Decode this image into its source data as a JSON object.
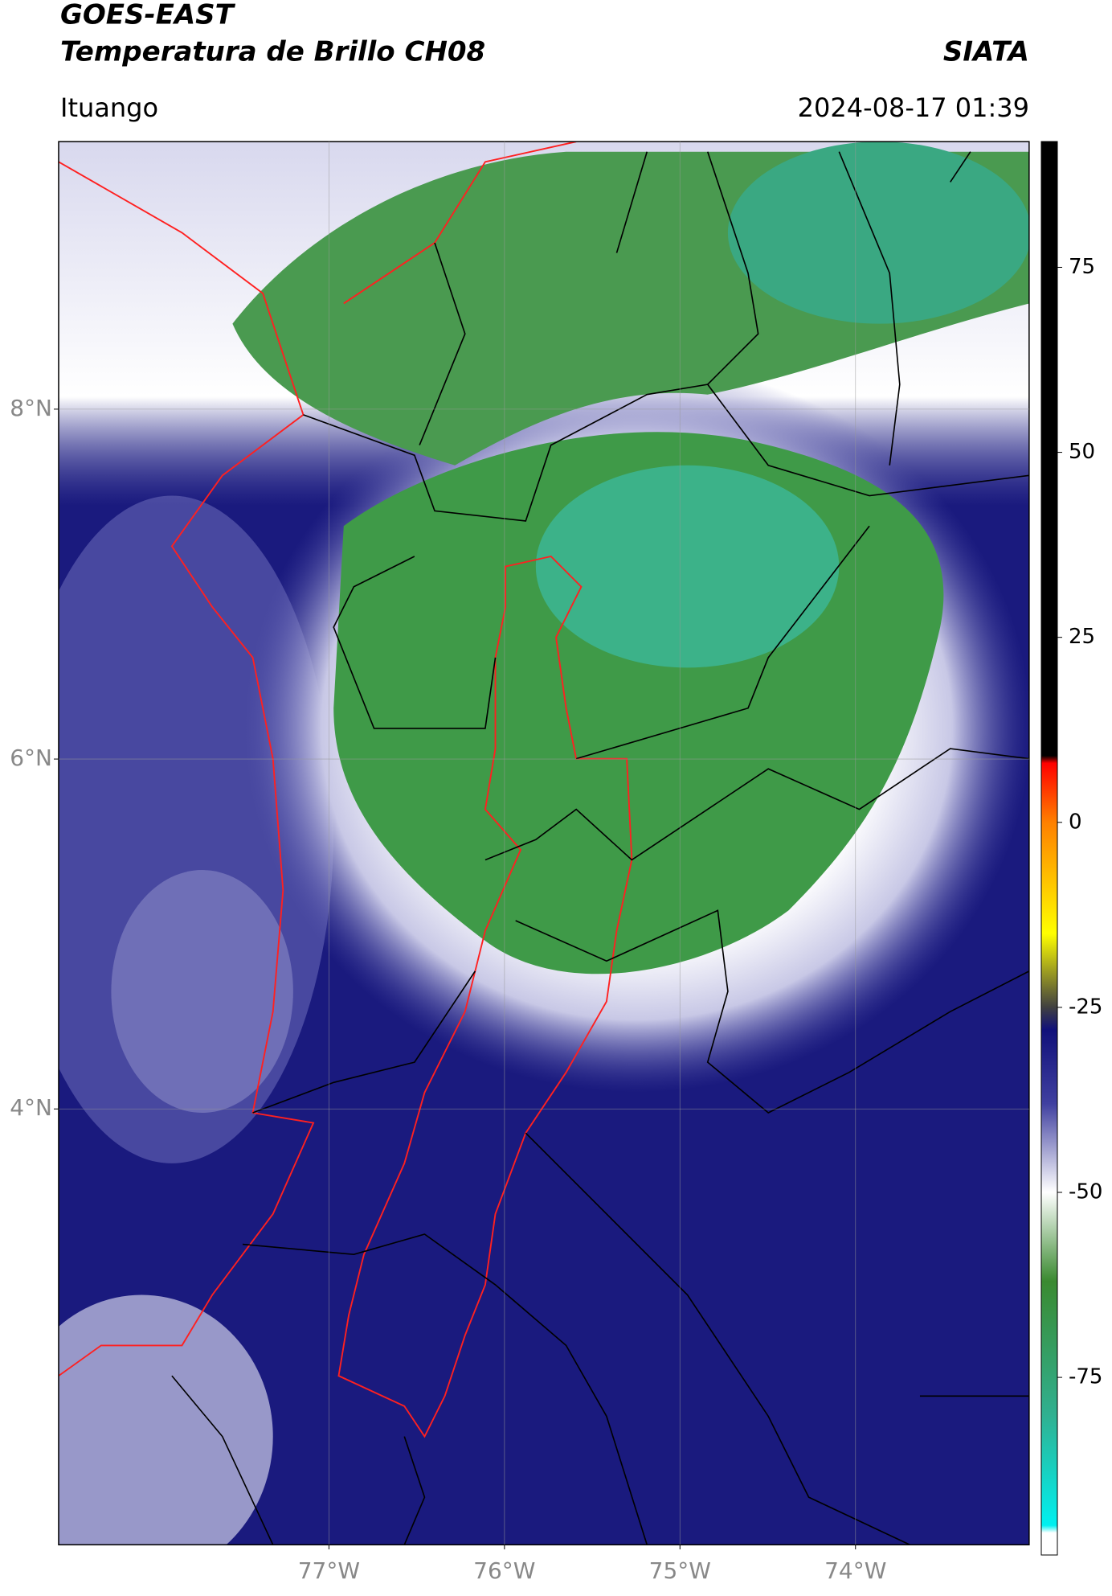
{
  "header": {
    "title": "GOES-EAST",
    "subtitle": "Temperatura de Brillo CH08",
    "source": "SIATA",
    "region": "Ituango",
    "timestamp": "2024-08-17 01:39"
  },
  "map": {
    "lonlim": [
      -78.54,
      -73.01
    ],
    "latlim": [
      1.51,
      9.53
    ],
    "lon_ticks": [
      {
        "value": -77,
        "label": "77°W"
      },
      {
        "value": -76,
        "label": "76°W"
      },
      {
        "value": -75,
        "label": "75°W"
      },
      {
        "value": -74,
        "label": "74°W"
      }
    ],
    "lat_ticks": [
      {
        "value": 8,
        "label": "8°N"
      },
      {
        "value": 6,
        "label": "6°N"
      },
      {
        "value": 4,
        "label": "4°N"
      }
    ],
    "grid": true
  },
  "colorbar": {
    "lim": [
      -99,
      92
    ],
    "ticks": [
      75,
      50,
      25,
      0,
      -25,
      -50,
      -75
    ],
    "colormap": [
      {
        "value": 92,
        "color": "#000000"
      },
      {
        "value": 9,
        "color": "#000000"
      },
      {
        "value": 8,
        "color": "#ff0000"
      },
      {
        "value": 0,
        "color": "#ff8000"
      },
      {
        "value": -15,
        "color": "#ffff00"
      },
      {
        "value": -25,
        "color": "#404040"
      },
      {
        "value": -28,
        "color": "#10107a"
      },
      {
        "value": -38,
        "color": "#4040a0"
      },
      {
        "value": -50,
        "color": "#ffffff"
      },
      {
        "value": -62,
        "color": "#3a8a30"
      },
      {
        "value": -80,
        "color": "#30b090"
      },
      {
        "value": -95,
        "color": "#00f0f0"
      },
      {
        "value": -96,
        "color": "#ffffff"
      },
      {
        "value": -99,
        "color": "#ffffff"
      }
    ]
  }
}
